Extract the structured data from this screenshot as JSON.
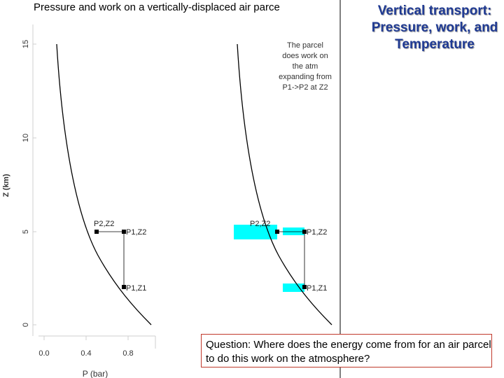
{
  "figure": {
    "title": "Pressure and work on a vertically-displaced air parce",
    "ylabel": "Z (km)",
    "xlabel": "P (bar)",
    "y_ticks": [
      "15",
      "10",
      "5",
      "0"
    ],
    "x_ticks": [
      "0.0",
      "0.4",
      "0.8"
    ],
    "left_panel": {
      "point_p2z2": "P2,Z2",
      "point_p1z2": "P1,Z2",
      "point_p1z1": "P1,Z1"
    },
    "right_panel": {
      "annotation": [
        "The parcel",
        "does work on",
        "the atm",
        "expanding from",
        "P1->P2 at Z2"
      ],
      "point_p2z2": "P2,Z2",
      "point_p1z2": "P1,Z2",
      "point_p1z1": "P1,Z1"
    },
    "colors": {
      "highlight": "#00ffff",
      "curve": "#000000"
    }
  },
  "side_title": "Vertical transport: Pressure, work, and Temperature",
  "question": "Question:  Where does the energy come from for an air parcel to do this work on the atmosphere?"
}
